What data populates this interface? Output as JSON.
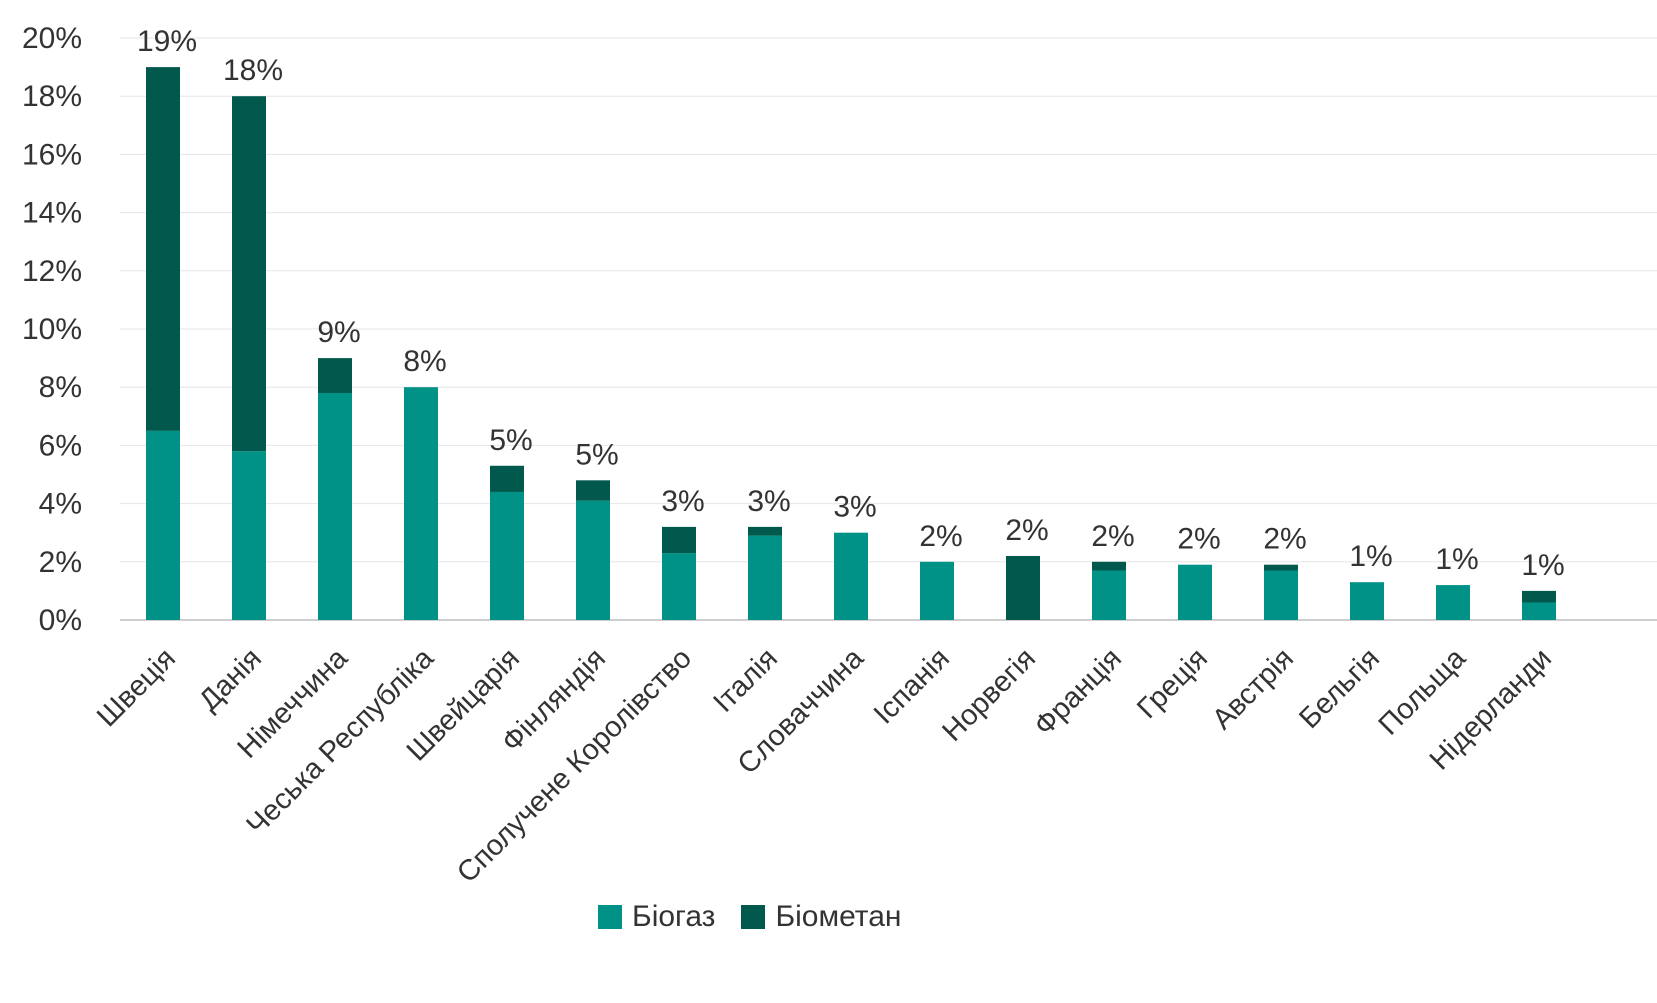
{
  "chart_data": {
    "type": "bar",
    "stacked": true,
    "categories": [
      "Швеція",
      "Данія",
      "Німеччина",
      "Чеська Республіка",
      "Швейцарія",
      "Фінляндія",
      "Сполучене Королівство",
      "Італія",
      "Словаччина",
      "Іспанія",
      "Норвегія",
      "Франція",
      "Греція",
      "Австрія",
      "Бельгія",
      "Польща",
      "Нідерланди"
    ],
    "series": [
      {
        "name": "Біогаз",
        "color": "#009287",
        "values": [
          6.5,
          5.8,
          7.8,
          8.0,
          4.4,
          4.1,
          2.3,
          2.9,
          3.0,
          2.0,
          0.0,
          1.7,
          1.9,
          1.7,
          1.3,
          1.2,
          0.6
        ]
      },
      {
        "name": "Біометан",
        "color": "#00594C",
        "values": [
          12.5,
          12.2,
          1.2,
          0.0,
          0.9,
          0.7,
          0.9,
          0.3,
          0.0,
          0.0,
          2.2,
          0.3,
          0.0,
          0.2,
          0.0,
          0.0,
          0.4
        ]
      }
    ],
    "totals_labels": [
      "19%",
      "18%",
      "9%",
      "8%",
      "5%",
      "5%",
      "3%",
      "3%",
      "3%",
      "2%",
      "2%",
      "2%",
      "2%",
      "2%",
      "1%",
      "1%",
      "1%"
    ],
    "y_ticks": [
      "0%",
      "2%",
      "4%",
      "6%",
      "8%",
      "10%",
      "12%",
      "14%",
      "16%",
      "18%",
      "20%"
    ],
    "ylim": [
      0,
      20
    ],
    "grid": true,
    "legend": "bottom"
  }
}
